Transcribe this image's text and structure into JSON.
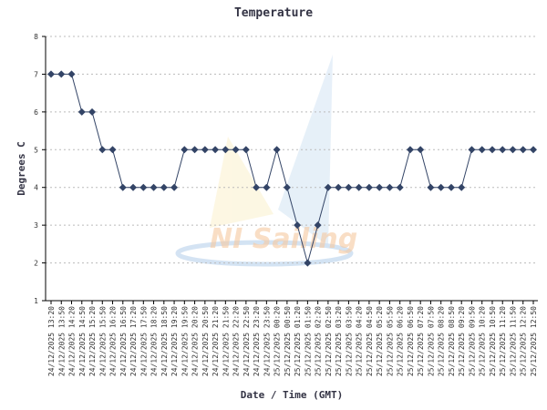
{
  "chart_data": {
    "type": "line",
    "title": "Temperature",
    "x_label": "Date / Time (GMT)",
    "y_label": "Degrees C",
    "watermark": "NI Sailing",
    "categories": [
      "24/12/2025 13:20",
      "24/12/2025 13:50",
      "24/12/2025 14:20",
      "24/12/2025 14:50",
      "24/12/2025 15:20",
      "24/12/2025 15:50",
      "24/12/2025 16:20",
      "24/12/2025 16:50",
      "24/12/2025 17:20",
      "24/12/2025 17:50",
      "24/12/2025 18:20",
      "24/12/2025 18:50",
      "24/12/2025 19:20",
      "24/12/2025 19:50",
      "24/12/2025 20:20",
      "24/12/2025 20:50",
      "24/12/2025 21:20",
      "24/12/2025 21:50",
      "24/12/2025 22:20",
      "24/12/2025 22:50",
      "24/12/2025 23:20",
      "24/12/2025 23:50",
      "25/12/2025 00:20",
      "25/12/2025 00:50",
      "25/12/2025 01:20",
      "25/12/2025 01:50",
      "25/12/2025 02:20",
      "25/12/2025 02:50",
      "25/12/2025 03:20",
      "25/12/2025 03:50",
      "25/12/2025 04:20",
      "25/12/2025 04:50",
      "25/12/2025 05:20",
      "25/12/2025 05:50",
      "25/12/2025 06:20",
      "25/12/2025 06:50",
      "25/12/2025 07:20",
      "25/12/2025 07:50",
      "25/12/2025 08:20",
      "25/12/2025 08:50",
      "25/12/2025 09:20",
      "25/12/2025 09:50",
      "25/12/2025 10:20",
      "25/12/2025 10:50",
      "25/12/2025 11:20",
      "25/12/2025 11:50",
      "25/12/2025 12:20",
      "25/12/2025 12:50"
    ],
    "values": [
      7,
      7,
      7,
      6,
      6,
      5,
      5,
      4,
      4,
      4,
      4,
      4,
      4,
      5,
      5,
      5,
      5,
      5,
      5,
      5,
      4,
      4,
      5,
      4,
      3,
      2,
      3,
      4,
      4,
      4,
      4,
      4,
      4,
      4,
      4,
      5,
      5,
      4,
      4,
      4,
      4,
      5,
      5,
      5,
      5,
      5,
      5,
      5
    ],
    "color": "#334466",
    "ylim": [
      1,
      8
    ],
    "yticks": [
      1,
      2,
      3,
      4,
      5,
      6,
      7,
      8
    ],
    "grid": true
  }
}
